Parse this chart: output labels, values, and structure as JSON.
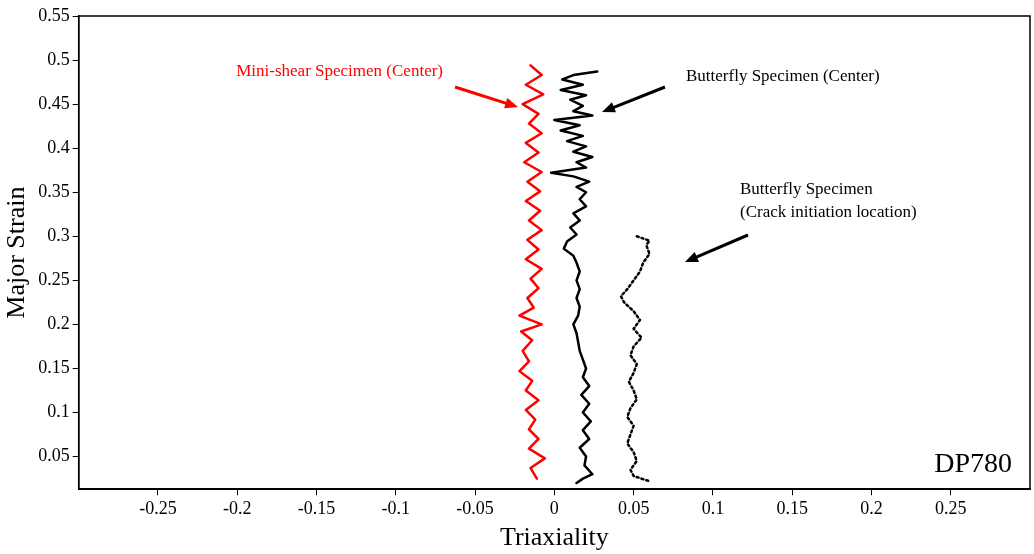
{
  "chart_data": {
    "type": "line",
    "xlabel": "Triaxiality",
    "ylabel": "Major Strain",
    "xlim": [
      -0.3,
      0.3
    ],
    "ylim": [
      0.013,
      0.55
    ],
    "xticks": [
      -0.25,
      -0.2,
      -0.15,
      -0.1,
      -0.05,
      0,
      0.05,
      0.1,
      0.15,
      0.2,
      0.25
    ],
    "yticks": [
      0.05,
      0.1,
      0.15,
      0.2,
      0.25,
      0.3,
      0.35,
      0.4,
      0.45,
      0.5,
      0.55
    ],
    "grid": false,
    "legend": false,
    "marker": "none",
    "series": [
      {
        "color": "#ff0000",
        "line_style": "solid",
        "x": [
          -0.015,
          -0.008,
          -0.018,
          -0.007,
          -0.02,
          -0.01,
          -0.016,
          -0.008,
          -0.018,
          -0.01,
          -0.019,
          -0.008,
          -0.017,
          -0.009,
          -0.018,
          -0.009,
          -0.016,
          -0.008,
          -0.017,
          -0.01,
          -0.018,
          -0.008,
          -0.015,
          -0.01,
          -0.017,
          -0.013,
          -0.022,
          -0.008,
          -0.021,
          -0.014,
          -0.02,
          -0.016,
          -0.022,
          -0.014,
          -0.018,
          -0.01,
          -0.018,
          -0.012,
          -0.016,
          -0.01,
          -0.016,
          -0.006,
          -0.015,
          -0.011
        ],
        "values": [
          0.494,
          0.483,
          0.472,
          0.461,
          0.45,
          0.439,
          0.428,
          0.417,
          0.406,
          0.395,
          0.384,
          0.373,
          0.362,
          0.351,
          0.34,
          0.329,
          0.318,
          0.307,
          0.296,
          0.285,
          0.274,
          0.263,
          0.252,
          0.241,
          0.23,
          0.219,
          0.21,
          0.2,
          0.192,
          0.182,
          0.17,
          0.158,
          0.147,
          0.136,
          0.125,
          0.114,
          0.103,
          0.092,
          0.081,
          0.07,
          0.059,
          0.048,
          0.037,
          0.025
        ]
      },
      {
        "color": "#000000",
        "line_style": "solid",
        "x": [
          0.027,
          0.012,
          0.005,
          0.018,
          0.004,
          0.02,
          0.01,
          0.018,
          0.012,
          0.024,
          0,
          0.016,
          0.004,
          0.018,
          0.008,
          0.02,
          0.012,
          0.024,
          0.014,
          0.02,
          -0.002,
          0.012,
          0.022,
          0.014,
          0.02,
          0.016,
          0.02,
          0.012,
          0.016,
          0.01,
          0.014,
          0.008,
          0.006,
          0.012,
          0.014,
          0.016,
          0.014,
          0.016,
          0.014,
          0.016,
          0.015,
          0.012,
          0.014,
          0.015,
          0.016,
          0.018,
          0.02,
          0.018,
          0.022,
          0.017,
          0.022,
          0.018,
          0.023,
          0.018,
          0.022,
          0.016,
          0.02,
          0.019,
          0.024,
          0.018,
          0.014
        ],
        "values": [
          0.487,
          0.483,
          0.478,
          0.472,
          0.466,
          0.46,
          0.455,
          0.448,
          0.442,
          0.437,
          0.432,
          0.426,
          0.42,
          0.414,
          0.408,
          0.402,
          0.396,
          0.39,
          0.384,
          0.378,
          0.372,
          0.368,
          0.362,
          0.356,
          0.35,
          0.342,
          0.334,
          0.326,
          0.318,
          0.31,
          0.302,
          0.294,
          0.286,
          0.278,
          0.27,
          0.26,
          0.25,
          0.24,
          0.23,
          0.22,
          0.21,
          0.2,
          0.19,
          0.18,
          0.17,
          0.16,
          0.15,
          0.14,
          0.13,
          0.12,
          0.11,
          0.1,
          0.09,
          0.08,
          0.07,
          0.06,
          0.05,
          0.04,
          0.03,
          0.025,
          0.02
        ]
      },
      {
        "color": "#000000",
        "line_style": "dotted",
        "x": [
          0.052,
          0.06,
          0.058,
          0.06,
          0.056,
          0.054,
          0.05,
          0.046,
          0.042,
          0.044,
          0.05,
          0.054,
          0.05,
          0.055,
          0.05,
          0.048,
          0.052,
          0.05,
          0.047,
          0.05,
          0.052,
          0.048,
          0.046,
          0.05,
          0.048,
          0.046,
          0.05,
          0.052,
          0.048,
          0.05,
          0.06
        ],
        "values": [
          0.3,
          0.295,
          0.29,
          0.28,
          0.27,
          0.26,
          0.25,
          0.24,
          0.232,
          0.225,
          0.215,
          0.205,
          0.195,
          0.185,
          0.175,
          0.165,
          0.155,
          0.145,
          0.135,
          0.125,
          0.115,
          0.105,
          0.095,
          0.085,
          0.075,
          0.065,
          0.055,
          0.045,
          0.035,
          0.028,
          0.022
        ]
      }
    ],
    "annotations": [
      "Mini-shear Specimen (Center)",
      "Butterfly Specimen (Center)",
      "Butterfly Specimen\n(Crack initiation location)",
      "DP780"
    ]
  }
}
